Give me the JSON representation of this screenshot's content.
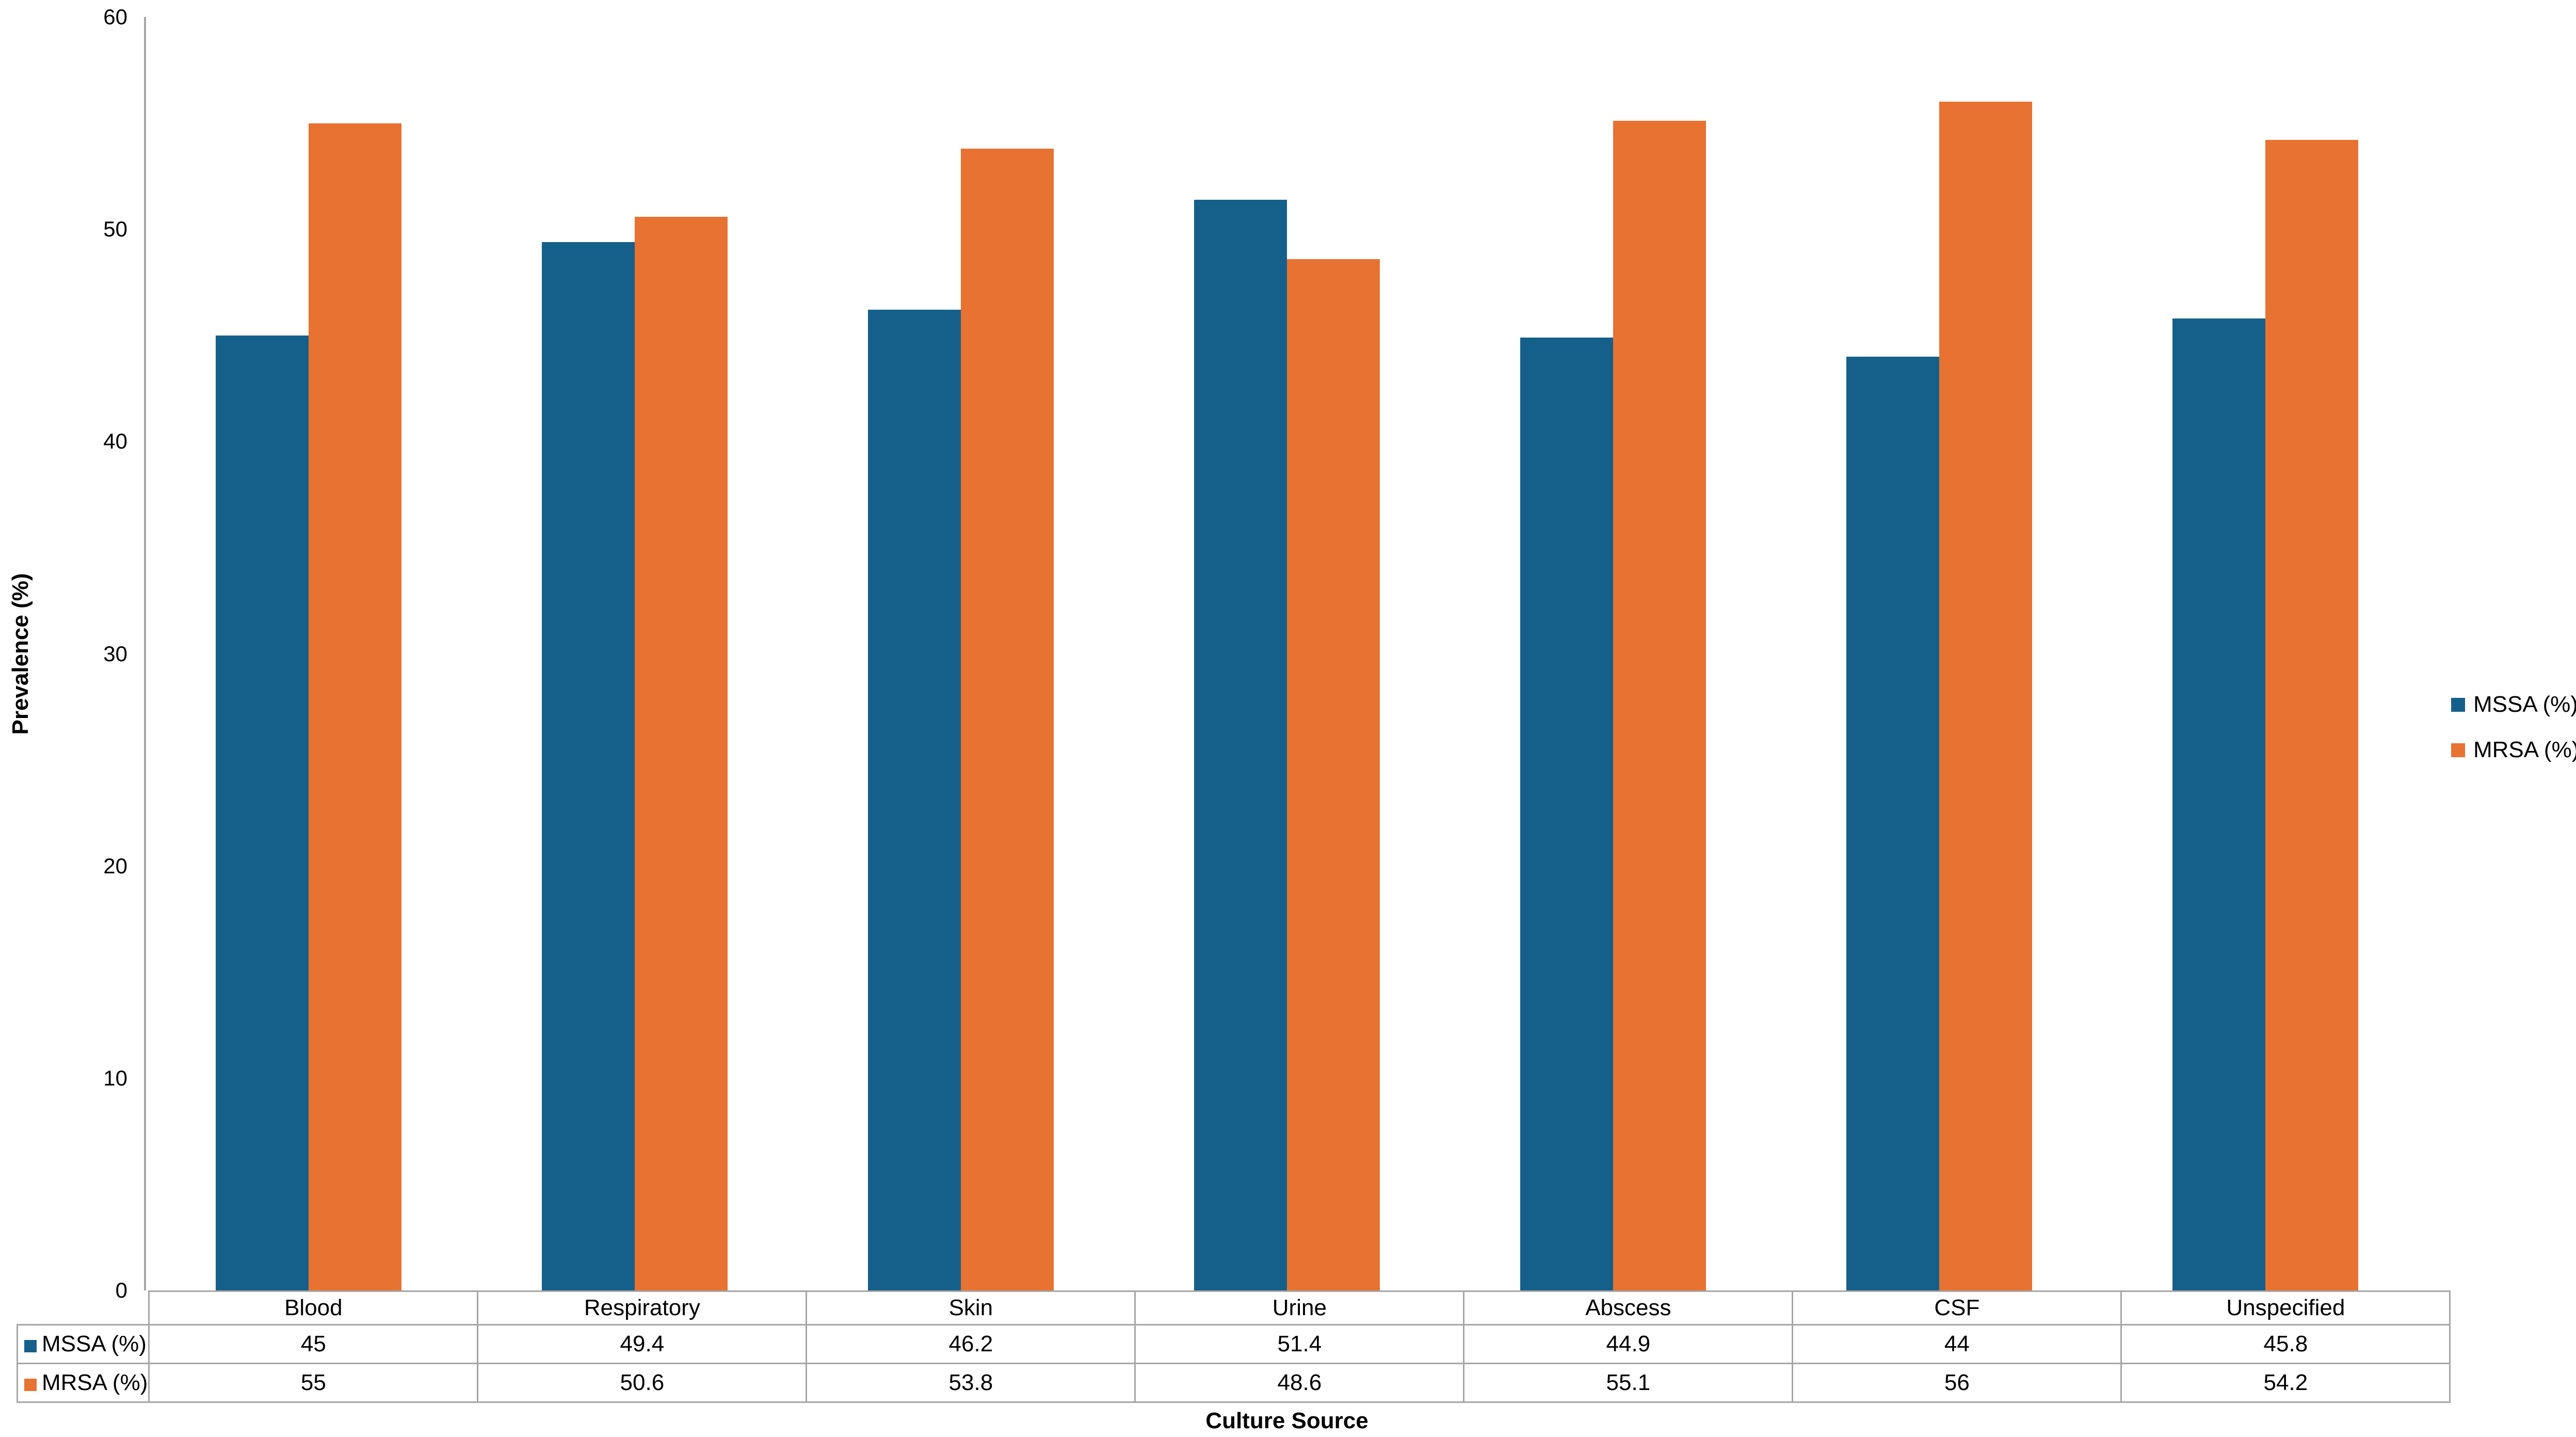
{
  "chart_data": {
    "type": "bar",
    "title": "",
    "categories": [
      "Blood",
      "Respiratory",
      "Skin",
      "Urine",
      "Abscess",
      "CSF",
      "Unspecified"
    ],
    "series": [
      {
        "name": "MSSA (%)",
        "color": "#15608A",
        "values": [
          45,
          49.4,
          46.2,
          51.4,
          44.9,
          44,
          45.8
        ]
      },
      {
        "name": "MRSA (%)",
        "color": "#E87232",
        "values": [
          55,
          50.6,
          53.8,
          48.6,
          55.1,
          56,
          54.2
        ]
      }
    ],
    "xlabel": "Culture Source",
    "ylabel": "Prevalence (%)",
    "ylim": [
      0,
      60
    ],
    "yticks": [
      0,
      10,
      20,
      30,
      40,
      50,
      60
    ],
    "grid": false,
    "legend_position": "right",
    "data_table_shown": true,
    "axis_color": "#A6A6A6",
    "table_border_color": "#A6A6A6",
    "background_color": "#FFFFFF"
  }
}
